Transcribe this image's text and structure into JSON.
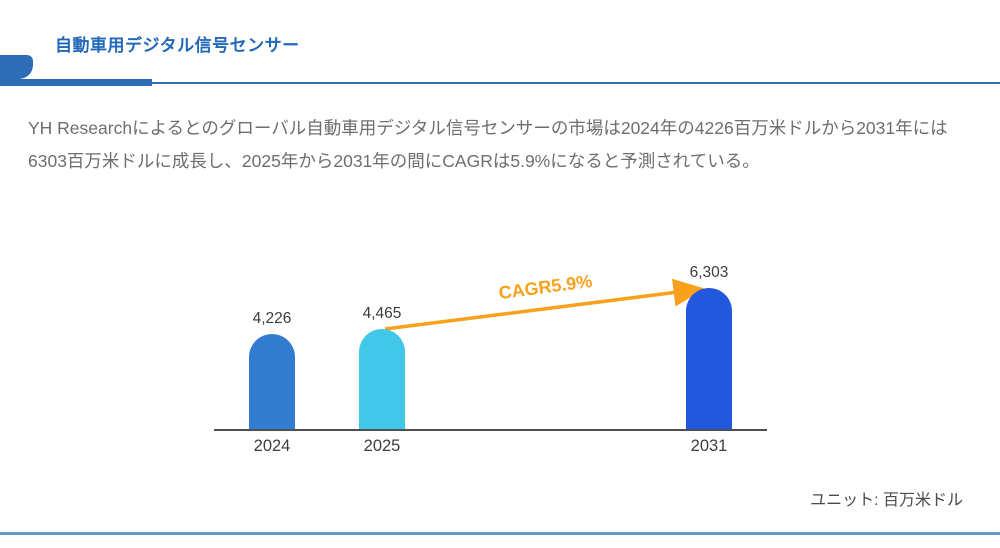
{
  "page": {
    "title": "自動車用デジタル信号センサー",
    "description": "YH Researchによるとのグローバル自動車用デジタル信号センサーの市場は2024年の4226百万米ドルから2031年には6303百万米ドルに成長し、2025年から2031年の間にCAGRは5.9%になると予測されている。",
    "unit_note": "ユニット: 百万米ドル"
  },
  "colors": {
    "brand_blue": "#2e6db5",
    "title_blue": "#2268b8",
    "body_gray": "#6e6e6e",
    "axis_gray": "#4f4f4f",
    "arrow_orange": "#f9a11b",
    "bottom_line_blue": "#6699cc"
  },
  "chart_data": {
    "type": "bar",
    "title": "",
    "xlabel": "",
    "ylabel": "",
    "unit": "百万米ドル",
    "categories": [
      "2024",
      "2025",
      "2031"
    ],
    "values": [
      4226,
      4465,
      6303
    ],
    "value_labels": [
      "4,226",
      "4,465",
      "6,303"
    ],
    "bar_colors": [
      "#337dd1",
      "#41c7e8",
      "#2257de"
    ],
    "ylim": [
      0,
      6303
    ],
    "grid": false,
    "legend": false,
    "annotation": {
      "cagr_label": "CAGR5.9%",
      "from_category": "2025",
      "to_category": "2031"
    }
  }
}
